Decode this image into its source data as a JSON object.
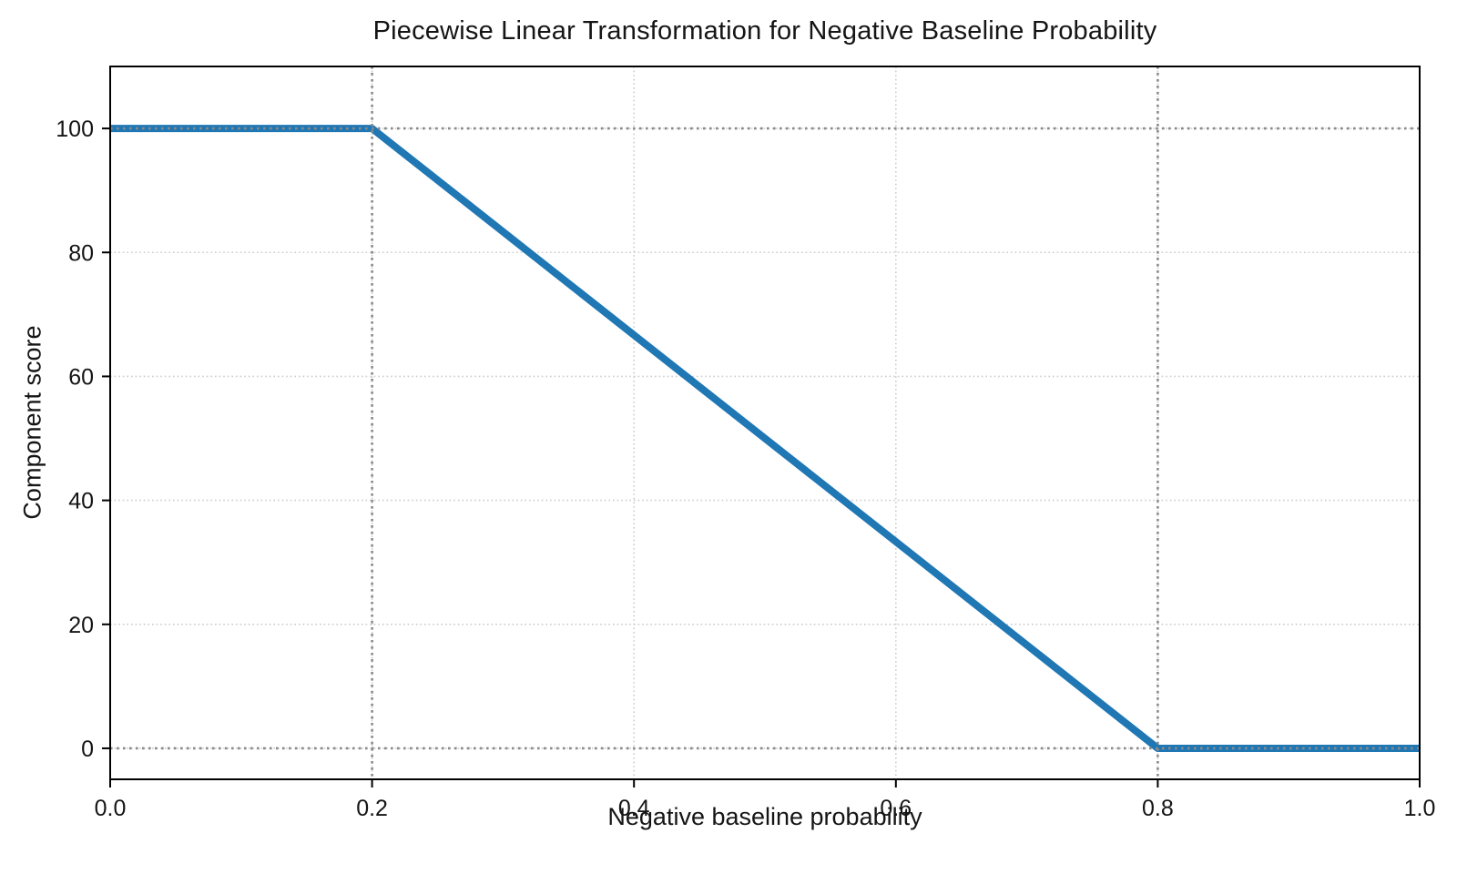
{
  "chart_data": {
    "type": "line",
    "title": "Piecewise Linear Transformation for Negative Baseline Probability",
    "xlabel": "Negative baseline probability",
    "ylabel": "Component score",
    "xlim": [
      0.0,
      1.0
    ],
    "ylim": [
      -5,
      110
    ],
    "x_ticks": [
      0.0,
      0.2,
      0.4,
      0.6,
      0.8,
      1.0
    ],
    "x_tick_labels": [
      "0.0",
      "0.2",
      "0.4",
      "0.6",
      "0.8",
      "1.0"
    ],
    "y_ticks": [
      0,
      20,
      40,
      60,
      80,
      100
    ],
    "y_tick_labels": [
      "0",
      "20",
      "40",
      "60",
      "80",
      "100"
    ],
    "grid": true,
    "grid_style": "dotted",
    "grid_color": "#cccccc",
    "legend": false,
    "series": [
      {
        "name": "component_score",
        "color": "#1f77b4",
        "linewidth": 8,
        "x": [
          0.0,
          0.2,
          0.8,
          1.0
        ],
        "y": [
          100,
          100,
          0,
          0
        ]
      }
    ],
    "reference_lines": {
      "style": "dotted",
      "color": "#8a8a8a",
      "linewidth": 2.6,
      "vertical_x": [
        0.2,
        0.8
      ],
      "horizontal_y": [
        0,
        100
      ]
    },
    "spine_color": "#000000",
    "background": "#ffffff"
  }
}
